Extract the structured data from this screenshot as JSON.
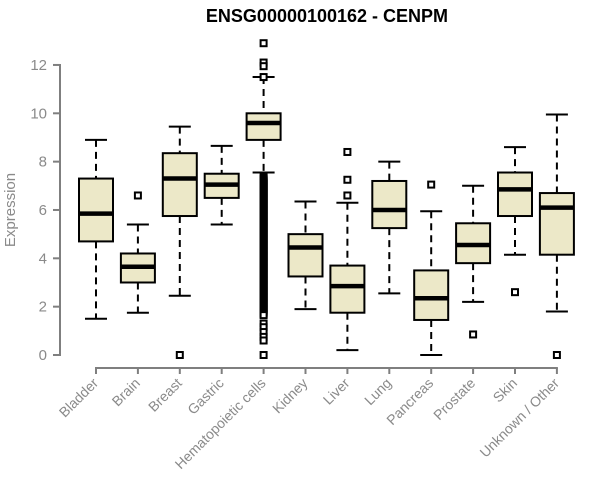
{
  "chart_data": {
    "type": "boxplot",
    "title": "ENSG00000100162 - CENPM",
    "ylabel": "Expression",
    "xlabel": "",
    "ylim": [
      0,
      13
    ],
    "yticks": [
      0,
      2,
      4,
      6,
      8,
      10,
      12
    ],
    "grid": false,
    "legend": "none",
    "colors": {
      "box_fill": "#ece8c8",
      "box_stroke": "#000000",
      "median": "#000000",
      "whisker": "#000000",
      "outlier_stroke": "#000000",
      "outlier_fill": "#ffffff",
      "axis_line": "#7f7f7f",
      "axis_text": "#8a8a8a",
      "title_text": "#000000",
      "background": "#ffffff"
    },
    "categories": [
      "Bladder",
      "Brain",
      "Breast",
      "Gastric",
      "Hematopoietic cells",
      "Kidney",
      "Liver",
      "Lung",
      "Pancreas",
      "Prostate",
      "Skin",
      "Unknown / Other"
    ],
    "series": [
      {
        "category": "Bladder",
        "whisker_low": 1.5,
        "q1": 4.7,
        "median": 5.85,
        "q3": 7.3,
        "whisker_high": 8.9,
        "outliers": []
      },
      {
        "category": "Brain",
        "whisker_low": 1.75,
        "q1": 3.0,
        "median": 3.65,
        "q3": 4.2,
        "whisker_high": 5.4,
        "outliers": [
          6.6
        ]
      },
      {
        "category": "Breast",
        "whisker_low": 2.45,
        "q1": 5.75,
        "median": 7.3,
        "q3": 8.35,
        "whisker_high": 9.45,
        "outliers": [
          0
        ]
      },
      {
        "category": "Gastric",
        "whisker_low": 5.4,
        "q1": 6.5,
        "median": 7.05,
        "q3": 7.5,
        "whisker_high": 8.65,
        "outliers": []
      },
      {
        "category": "Hematopoietic cells",
        "whisker_low": 7.55,
        "q1": 8.9,
        "median": 9.6,
        "q3": 10.0,
        "whisker_high": 11.5,
        "outliers": [
          12.9,
          12.1,
          11.95,
          11.5,
          1.3,
          1.15,
          0.95,
          0.75,
          0.6,
          0
        ],
        "dense_outlier_range": {
          "from": 7.35,
          "to": 1.65,
          "step": 0.05
        }
      },
      {
        "category": "Kidney",
        "whisker_low": 1.9,
        "q1": 3.25,
        "median": 4.45,
        "q3": 5.0,
        "whisker_high": 6.35,
        "outliers": []
      },
      {
        "category": "Liver",
        "whisker_low": 0.2,
        "q1": 1.75,
        "median": 2.85,
        "q3": 3.7,
        "whisker_high": 6.3,
        "outliers": [
          8.4,
          7.25,
          6.6
        ]
      },
      {
        "category": "Lung",
        "whisker_low": 2.55,
        "q1": 5.25,
        "median": 6.0,
        "q3": 7.2,
        "whisker_high": 8.0,
        "outliers": []
      },
      {
        "category": "Pancreas",
        "whisker_low": 0.0,
        "q1": 1.45,
        "median": 2.35,
        "q3": 3.5,
        "whisker_high": 5.95,
        "outliers": [
          7.05
        ]
      },
      {
        "category": "Prostate",
        "whisker_low": 2.2,
        "q1": 3.8,
        "median": 4.55,
        "q3": 5.45,
        "whisker_high": 7.0,
        "outliers": [
          0.85
        ]
      },
      {
        "category": "Skin",
        "whisker_low": 4.15,
        "q1": 5.75,
        "median": 6.85,
        "q3": 7.55,
        "whisker_high": 8.6,
        "outliers": [
          2.6
        ]
      },
      {
        "category": "Unknown / Other",
        "whisker_low": 1.8,
        "q1": 4.15,
        "median": 6.1,
        "q3": 6.7,
        "whisker_high": 9.95,
        "outliers": [
          0
        ]
      }
    ]
  }
}
